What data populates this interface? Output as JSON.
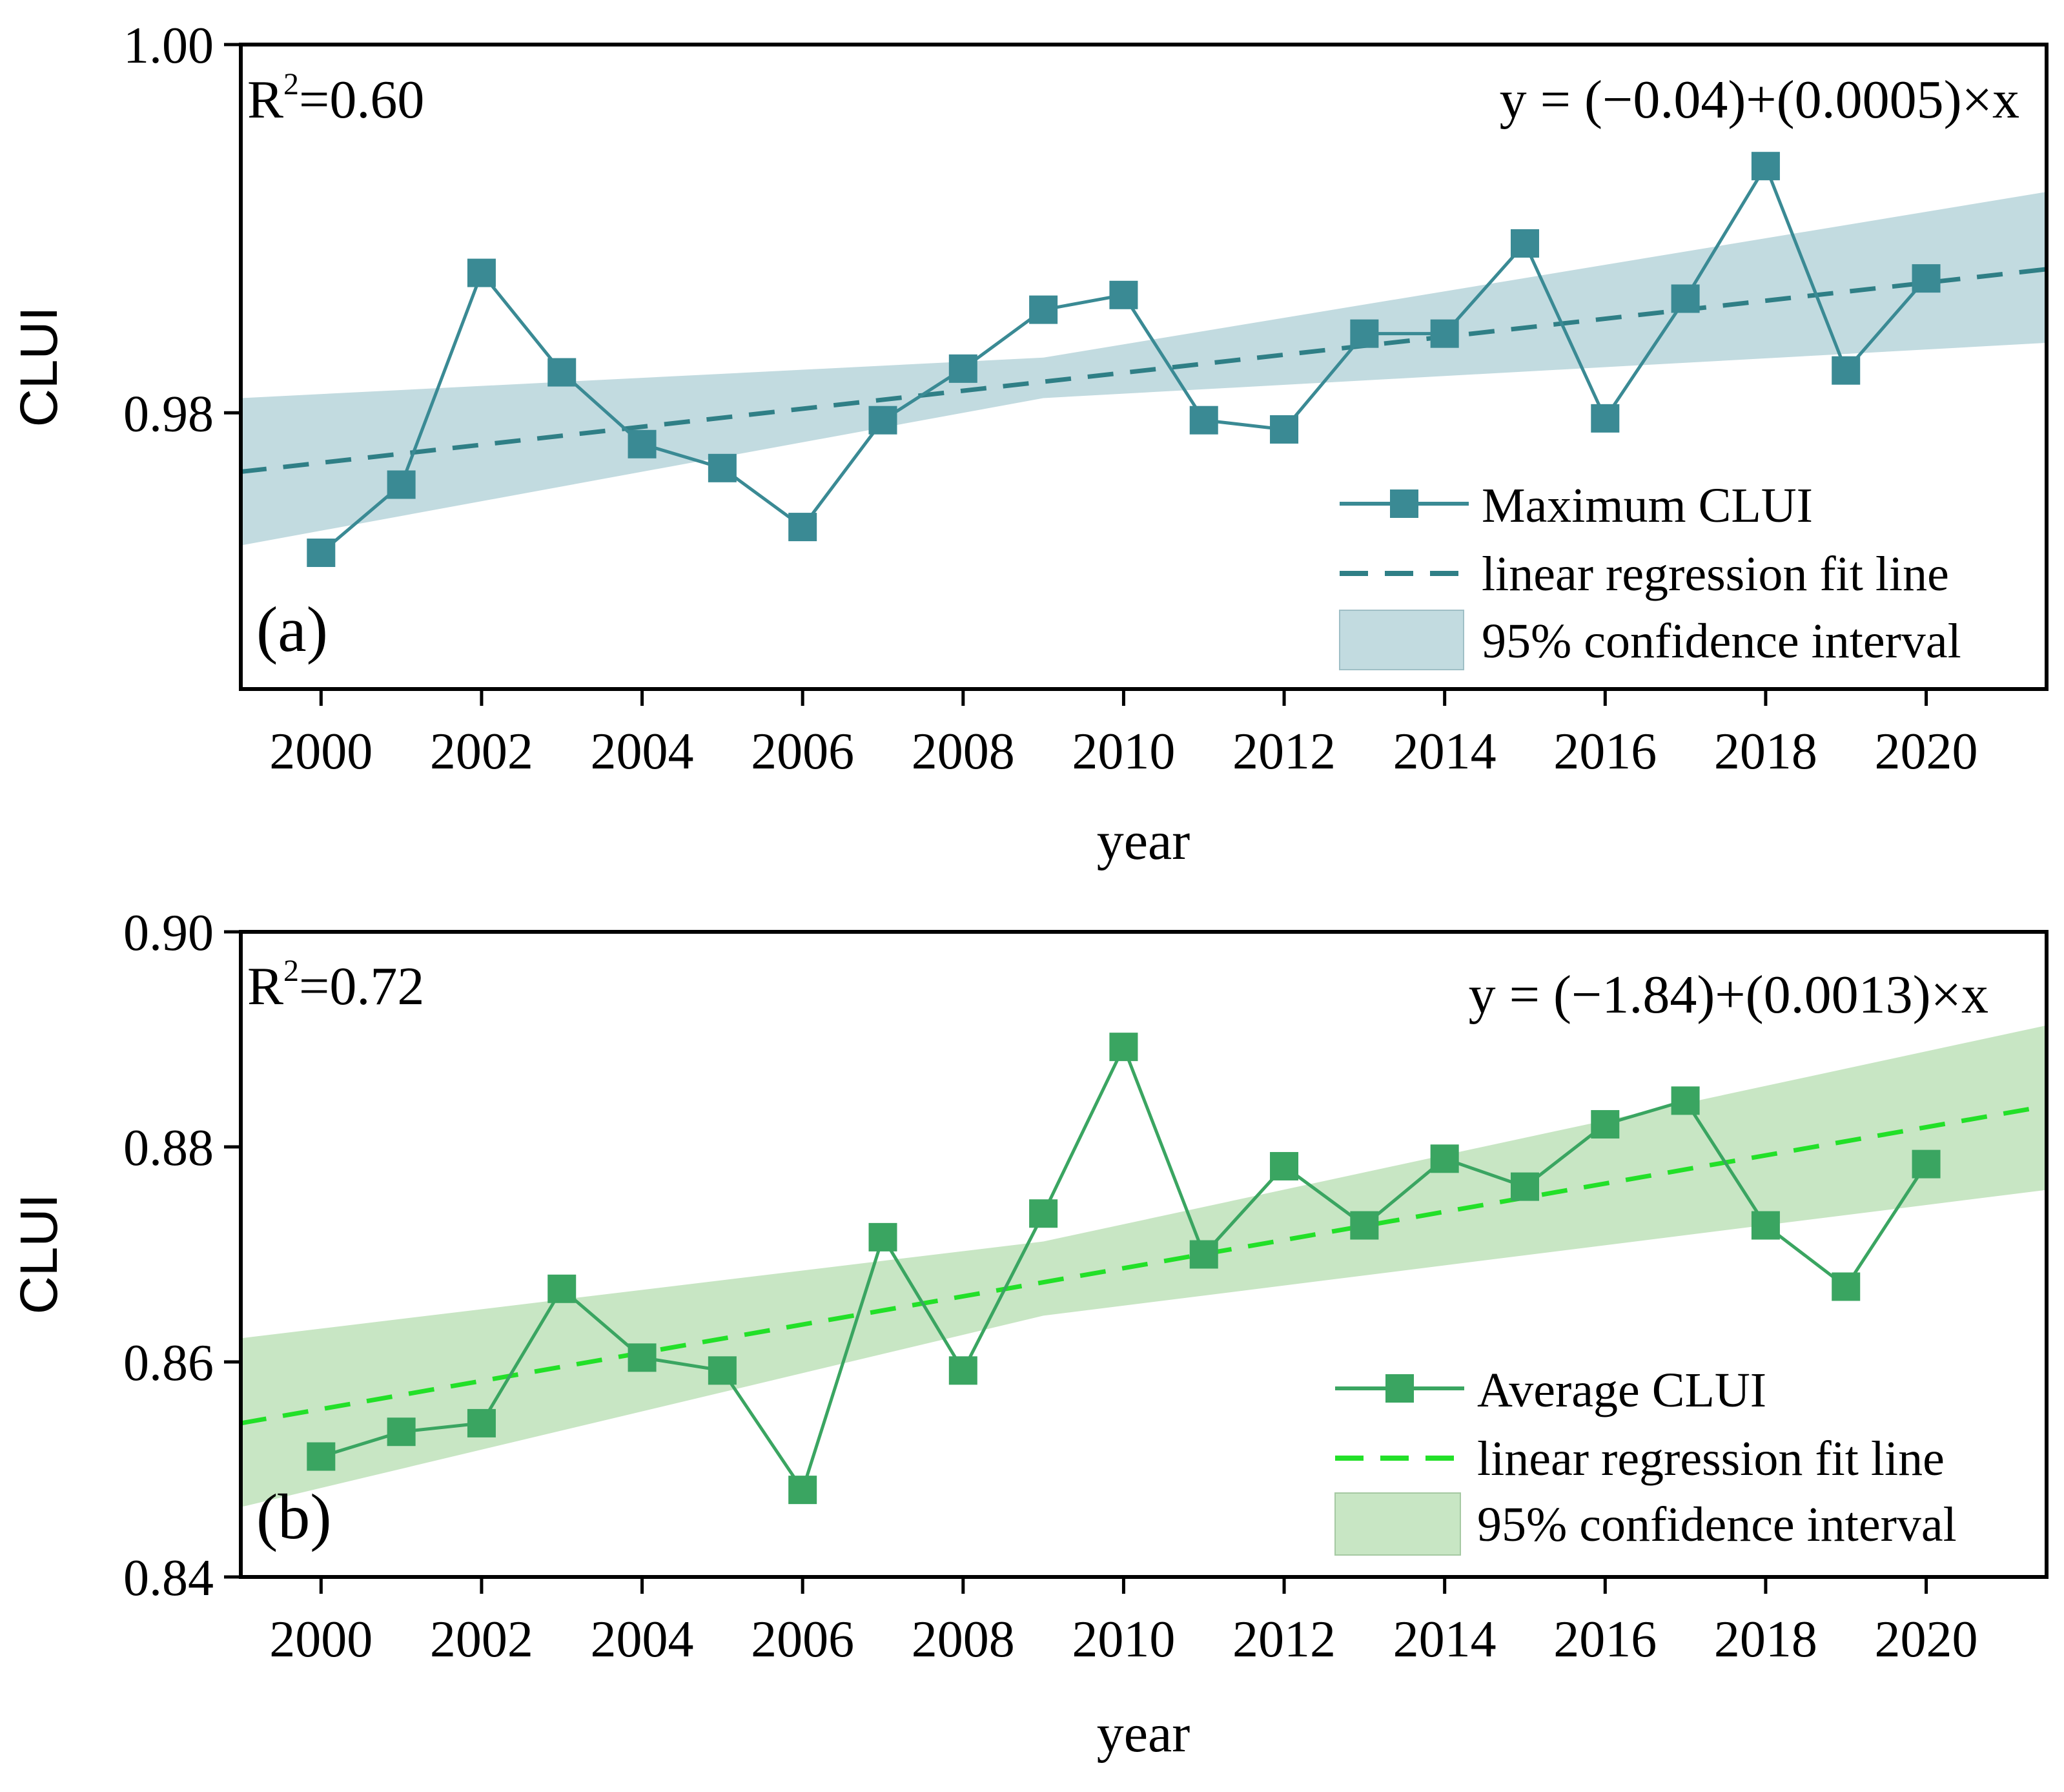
{
  "chart_data": [
    {
      "panel_label": "(a)",
      "type": "line",
      "xlabel": "year",
      "ylabel": "CLUI",
      "xlim": [
        1999,
        2021.5
      ],
      "ylim": [
        0.965,
        1.0
      ],
      "x_ticks": [
        2000,
        2002,
        2004,
        2006,
        2008,
        2010,
        2012,
        2014,
        2016,
        2018,
        2020
      ],
      "y_ticks": [
        {
          "value": 0.98,
          "label": "0.98"
        },
        {
          "value": 1.0,
          "label": "1.00"
        }
      ],
      "r2_text": "=0.60",
      "equation": "y = (−0.04)+(0.0005)×x",
      "series": [
        {
          "name": "Maximum CLUI",
          "color": "#3a8a94",
          "x": [
            2000,
            2001,
            2002,
            2003,
            2004,
            2005,
            2006,
            2007,
            2008,
            2009,
            2010,
            2011,
            2012,
            2013,
            2014,
            2015,
            2016,
            2017,
            2018,
            2019,
            2020
          ],
          "values": [
            0.9724,
            0.9761,
            0.9876,
            0.9822,
            0.9783,
            0.977,
            0.9738,
            0.9796,
            0.9824,
            0.9856,
            0.9864,
            0.9796,
            0.9791,
            0.9843,
            0.9843,
            0.9892,
            0.9797,
            0.9862,
            0.9934,
            0.9823,
            0.9873
          ]
        }
      ],
      "fit": {
        "name": "linear regression fit line",
        "color": "#2f7f86",
        "y_start": 0.9768,
        "y_end": 0.9878
      },
      "ci": {
        "name": "95% confidence interval",
        "color": "#c2dbe0",
        "x": [
          1999,
          2009,
          2021.5
        ],
        "upper": [
          0.9808,
          0.983,
          0.992
        ],
        "lower": [
          0.9728,
          0.9808,
          0.9838
        ]
      }
    },
    {
      "panel_label": "(b)",
      "type": "line",
      "xlabel": "year",
      "ylabel": "CLUI",
      "xlim": [
        1999,
        2021.5
      ],
      "ylim": [
        0.84,
        0.9
      ],
      "x_ticks": [
        2000,
        2002,
        2004,
        2006,
        2008,
        2010,
        2012,
        2014,
        2016,
        2018,
        2020
      ],
      "y_ticks": [
        {
          "value": 0.84,
          "label": "0.84"
        },
        {
          "value": 0.86,
          "label": "0.86"
        },
        {
          "value": 0.88,
          "label": "0.88"
        },
        {
          "value": 0.9,
          "label": "0.90"
        }
      ],
      "r2_text": "=0.72",
      "equation": "y = (−1.84)+(0.0013)×x",
      "series": [
        {
          "name": "Average CLUI",
          "color": "#3aa561",
          "x": [
            2000,
            2001,
            2002,
            2003,
            2004,
            2005,
            2006,
            2007,
            2008,
            2009,
            2010,
            2011,
            2012,
            2013,
            2014,
            2015,
            2016,
            2017,
            2018,
            2019,
            2020
          ],
          "values": [
            0.8512,
            0.8535,
            0.8543,
            0.8668,
            0.8604,
            0.8592,
            0.8481,
            0.8716,
            0.8592,
            0.8738,
            0.8893,
            0.87,
            0.8782,
            0.8727,
            0.8789,
            0.8763,
            0.8821,
            0.8843,
            0.8727,
            0.867,
            0.8784
          ]
        }
      ],
      "fit": {
        "name": "linear regression fit line",
        "color": "#22e028",
        "y_start": 0.8543,
        "y_end": 0.8838
      },
      "ci": {
        "name": "95% confidence interval",
        "color": "#c8e6c4",
        "x": [
          1999,
          2009,
          2021.5
        ],
        "upper": [
          0.8622,
          0.8712,
          0.8913
        ],
        "lower": [
          0.8465,
          0.8643,
          0.876
        ]
      }
    }
  ]
}
